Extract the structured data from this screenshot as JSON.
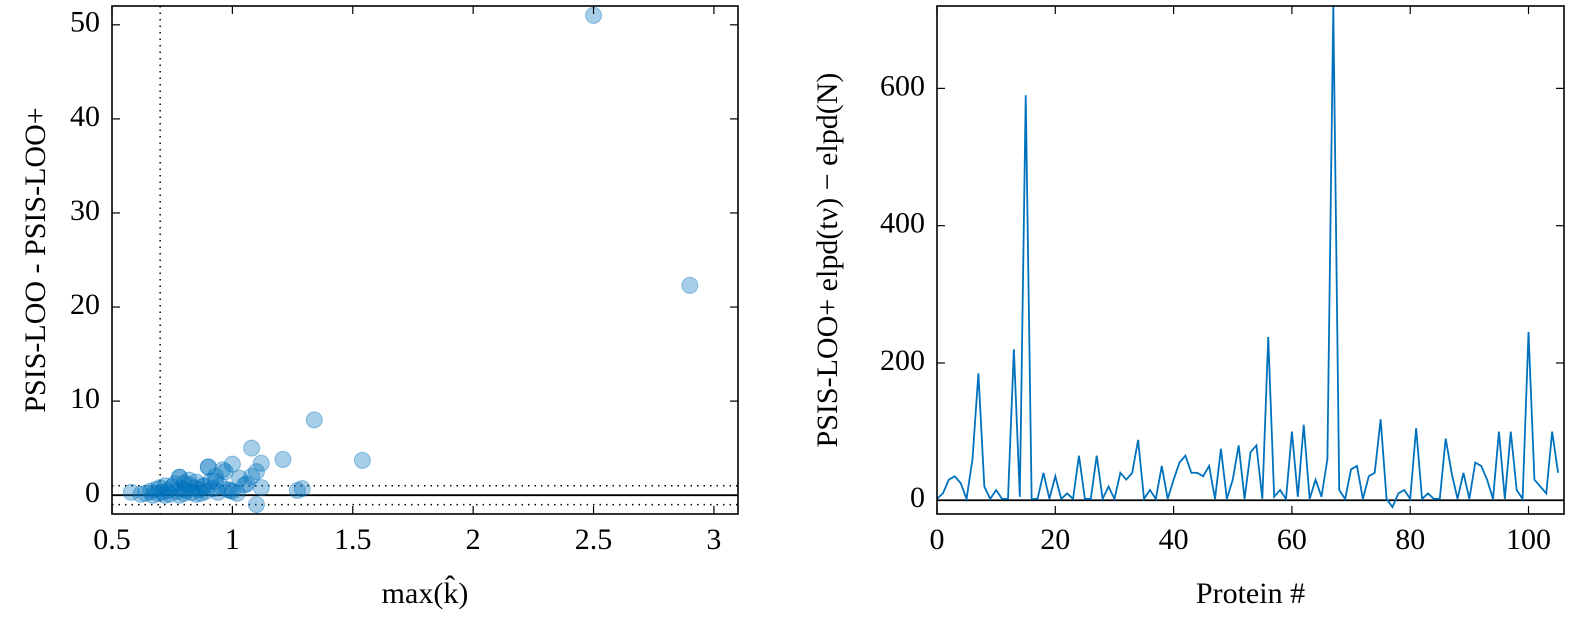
{
  "chart_data": [
    {
      "type": "scatter",
      "x_label": "max(k̂)",
      "y_label": "PSIS-LOO - PSIS-LOO+",
      "x": [
        0.58,
        0.62,
        0.64,
        0.66,
        0.67,
        0.68,
        0.69,
        0.7,
        0.71,
        0.72,
        0.73,
        0.74,
        0.75,
        0.76,
        0.77,
        0.78,
        0.78,
        0.79,
        0.8,
        0.8,
        0.81,
        0.82,
        0.83,
        0.84,
        0.85,
        0.86,
        0.87,
        0.88,
        0.89,
        0.9,
        0.91,
        0.92,
        0.93,
        0.94,
        0.95,
        0.97,
        0.98,
        1.0,
        1.02,
        1.05,
        1.08,
        1.1,
        1.12,
        1.06,
        1.12,
        0.9,
        0.78,
        1.0,
        1.08,
        1.21,
        1.27,
        1.29,
        1.34,
        1.54,
        2.5,
        2.9,
        1.1,
        0.96,
        0.85,
        0.72,
        0.82,
        0.88,
        0.93,
        0.99,
        1.03
      ],
      "values": [
        0.3,
        0.1,
        0.2,
        0.4,
        0.0,
        0.6,
        0.2,
        0.8,
        0.3,
        1.0,
        0.5,
        0.1,
        0.9,
        1.2,
        0.4,
        1.9,
        0.0,
        0.7,
        1.3,
        0.2,
        0.5,
        1.1,
        0.3,
        0.8,
        1.4,
        0.6,
        0.2,
        1.0,
        0.4,
        3.0,
        1.5,
        0.7,
        2.0,
        0.3,
        1.0,
        2.5,
        0.6,
        3.3,
        0.2,
        1.1,
        5.0,
        2.5,
        3.4,
        1.2,
        0.8,
        3.0,
        1.9,
        0.4,
        2.0,
        3.8,
        0.5,
        0.7,
        8.0,
        3.7,
        51.0,
        22.3,
        -1.0,
        2.7,
        0.1,
        0.0,
        1.6,
        0.9,
        1.5,
        0.5,
        1.8
      ],
      "color": "#0072bd",
      "xlim": [
        0.5,
        3.1
      ],
      "ylim": [
        -2,
        52
      ],
      "xticks": [
        0.5,
        1,
        1.5,
        2,
        2.5,
        3
      ],
      "yticks": [
        0,
        10,
        20,
        30,
        40,
        50
      ],
      "hlines": [
        {
          "value": 0,
          "style": "solid"
        },
        {
          "value": 1,
          "style": "dotted"
        },
        {
          "value": -1,
          "style": "dotted"
        }
      ],
      "vlines": [
        {
          "value": 0.7,
          "style": "dotted"
        }
      ],
      "grid": false
    },
    {
      "type": "line",
      "x_label": "Protein #",
      "y_label": "PSIS-LOO+ elpd(tν) − elpd(N)",
      "x": [
        0,
        1,
        2,
        3,
        4,
        5,
        6,
        7,
        8,
        9,
        10,
        11,
        12,
        13,
        14,
        15,
        16,
        17,
        18,
        19,
        20,
        21,
        22,
        23,
        24,
        25,
        26,
        27,
        28,
        29,
        30,
        31,
        32,
        33,
        34,
        35,
        36,
        37,
        38,
        39,
        40,
        41,
        42,
        43,
        44,
        45,
        46,
        47,
        48,
        49,
        50,
        51,
        52,
        53,
        54,
        55,
        56,
        57,
        58,
        59,
        60,
        61,
        62,
        63,
        64,
        65,
        66,
        67,
        68,
        69,
        70,
        71,
        72,
        73,
        74,
        75,
        76,
        77,
        78,
        79,
        80,
        81,
        82,
        83,
        84,
        85,
        86,
        87,
        88,
        89,
        90,
        91,
        92,
        93,
        94,
        95,
        96,
        97,
        98,
        99,
        100,
        101,
        102,
        103,
        104,
        105
      ],
      "values": [
        2,
        10,
        30,
        35,
        25,
        2,
        60,
        185,
        20,
        2,
        15,
        2,
        2,
        220,
        5,
        590,
        2,
        2,
        40,
        2,
        35,
        2,
        10,
        2,
        65,
        2,
        2,
        65,
        2,
        20,
        2,
        40,
        30,
        40,
        88,
        2,
        15,
        2,
        50,
        2,
        30,
        55,
        65,
        40,
        40,
        35,
        50,
        2,
        75,
        2,
        30,
        80,
        2,
        70,
        80,
        2,
        238,
        5,
        15,
        2,
        100,
        5,
        110,
        2,
        30,
        5,
        60,
        720,
        15,
        2,
        45,
        50,
        2,
        35,
        40,
        118,
        2,
        -10,
        10,
        15,
        2,
        105,
        2,
        10,
        2,
        2,
        90,
        40,
        2,
        40,
        2,
        55,
        50,
        30,
        2,
        100,
        2,
        100,
        15,
        2,
        245,
        30,
        20,
        10,
        100,
        40
      ],
      "color": "#0072bd",
      "xlim": [
        0,
        106
      ],
      "ylim": [
        -20,
        720
      ],
      "xticks": [
        0,
        20,
        40,
        60,
        80,
        100
      ],
      "yticks": [
        0,
        200,
        400,
        600
      ],
      "hlines": [
        {
          "value": 0,
          "style": "solid"
        }
      ],
      "grid": false
    }
  ]
}
